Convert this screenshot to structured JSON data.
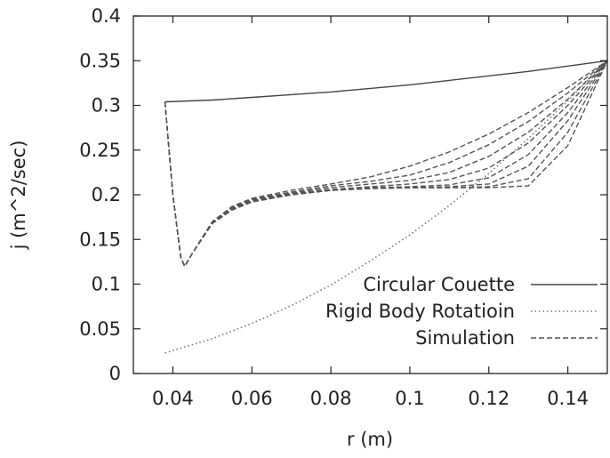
{
  "chart_data": {
    "type": "line",
    "title": "",
    "xlabel": "r (m)",
    "ylabel": "j (m^2/sec)",
    "xlim": [
      0.03,
      0.15
    ],
    "ylim": [
      0,
      0.4
    ],
    "xticks": [
      0.04,
      0.06,
      0.08,
      0.1,
      0.12,
      0.14
    ],
    "xtick_labels": [
      "0.04",
      "0.06",
      "0.08",
      "0.1",
      "0.12",
      "0.14"
    ],
    "yticks": [
      0,
      0.05,
      0.1,
      0.15,
      0.2,
      0.25,
      0.3,
      0.35,
      0.4
    ],
    "ytick_labels": [
      "0",
      "0.05",
      "0.1",
      "0.15",
      "0.2",
      "0.25",
      "0.3",
      "0.35",
      "0.4"
    ],
    "grid": false,
    "legend_position": "bottom-right",
    "series": [
      {
        "name": "Circular Couette",
        "style": "solid",
        "x": [
          0.038,
          0.05,
          0.06,
          0.07,
          0.08,
          0.09,
          0.1,
          0.11,
          0.12,
          0.13,
          0.14,
          0.15
        ],
        "y": [
          0.304,
          0.306,
          0.309,
          0.312,
          0.315,
          0.319,
          0.323,
          0.328,
          0.333,
          0.338,
          0.344,
          0.35
        ]
      },
      {
        "name": "Rigid Body Rotatioin",
        "style": "dotted",
        "x": [
          0.038,
          0.05,
          0.06,
          0.07,
          0.08,
          0.09,
          0.1,
          0.11,
          0.12,
          0.13,
          0.14,
          0.15
        ],
        "y": [
          0.023,
          0.039,
          0.056,
          0.076,
          0.099,
          0.126,
          0.155,
          0.188,
          0.224,
          0.263,
          0.305,
          0.35
        ]
      },
      {
        "name": "Simulation",
        "style": "dashed",
        "curves": [
          {
            "x": [
              0.038,
              0.04,
              0.042,
              0.043,
              0.045,
              0.05,
              0.055,
              0.06,
              0.07,
              0.08,
              0.09,
              0.1,
              0.11,
              0.12,
              0.13,
              0.14,
              0.15
            ],
            "y": [
              0.304,
              0.2,
              0.13,
              0.12,
              0.135,
              0.17,
              0.187,
              0.196,
              0.205,
              0.212,
              0.22,
              0.232,
              0.248,
              0.268,
              0.292,
              0.32,
              0.35
            ]
          },
          {
            "x": [
              0.038,
              0.04,
              0.042,
              0.043,
              0.045,
              0.05,
              0.055,
              0.06,
              0.07,
              0.08,
              0.09,
              0.1,
              0.11,
              0.12,
              0.13,
              0.14,
              0.15
            ],
            "y": [
              0.304,
              0.2,
              0.13,
              0.12,
              0.135,
              0.17,
              0.186,
              0.195,
              0.203,
              0.21,
              0.215,
              0.222,
              0.236,
              0.256,
              0.282,
              0.314,
              0.35
            ]
          },
          {
            "x": [
              0.038,
              0.04,
              0.042,
              0.043,
              0.045,
              0.05,
              0.055,
              0.06,
              0.07,
              0.08,
              0.09,
              0.1,
              0.11,
              0.12,
              0.13,
              0.14,
              0.15
            ],
            "y": [
              0.304,
              0.2,
              0.13,
              0.12,
              0.135,
              0.169,
              0.185,
              0.194,
              0.202,
              0.208,
              0.212,
              0.216,
              0.225,
              0.243,
              0.27,
              0.307,
              0.35
            ]
          },
          {
            "x": [
              0.038,
              0.04,
              0.042,
              0.043,
              0.045,
              0.05,
              0.055,
              0.06,
              0.07,
              0.08,
              0.09,
              0.1,
              0.11,
              0.12,
              0.13,
              0.14,
              0.15
            ],
            "y": [
              0.304,
              0.2,
              0.13,
              0.12,
              0.135,
              0.168,
              0.184,
              0.193,
              0.201,
              0.206,
              0.209,
              0.212,
              0.217,
              0.23,
              0.258,
              0.3,
              0.35
            ]
          },
          {
            "x": [
              0.038,
              0.04,
              0.042,
              0.043,
              0.045,
              0.05,
              0.055,
              0.06,
              0.07,
              0.08,
              0.09,
              0.1,
              0.11,
              0.12,
              0.13,
              0.14,
              0.15
            ],
            "y": [
              0.304,
              0.2,
              0.13,
              0.12,
              0.135,
              0.168,
              0.184,
              0.193,
              0.2,
              0.205,
              0.208,
              0.209,
              0.211,
              0.219,
              0.245,
              0.292,
              0.35
            ]
          },
          {
            "x": [
              0.038,
              0.04,
              0.042,
              0.043,
              0.045,
              0.05,
              0.055,
              0.06,
              0.07,
              0.08,
              0.09,
              0.1,
              0.11,
              0.12,
              0.13,
              0.14,
              0.15
            ],
            "y": [
              0.304,
              0.2,
              0.13,
              0.12,
              0.135,
              0.168,
              0.183,
              0.192,
              0.2,
              0.205,
              0.207,
              0.208,
              0.209,
              0.212,
              0.232,
              0.283,
              0.35
            ]
          },
          {
            "x": [
              0.038,
              0.04,
              0.042,
              0.043,
              0.045,
              0.05,
              0.055,
              0.06,
              0.07,
              0.08,
              0.09,
              0.1,
              0.11,
              0.12,
              0.13,
              0.14,
              0.15
            ],
            "y": [
              0.304,
              0.2,
              0.13,
              0.12,
              0.135,
              0.168,
              0.183,
              0.192,
              0.2,
              0.205,
              0.207,
              0.208,
              0.208,
              0.209,
              0.218,
              0.27,
              0.35
            ]
          },
          {
            "x": [
              0.038,
              0.04,
              0.042,
              0.043,
              0.045,
              0.05,
              0.055,
              0.06,
              0.07,
              0.08,
              0.09,
              0.1,
              0.11,
              0.12,
              0.13,
              0.14,
              0.15
            ],
            "y": [
              0.304,
              0.2,
              0.13,
              0.12,
              0.135,
              0.168,
              0.183,
              0.192,
              0.2,
              0.205,
              0.207,
              0.208,
              0.208,
              0.208,
              0.21,
              0.255,
              0.35
            ]
          }
        ]
      }
    ]
  }
}
